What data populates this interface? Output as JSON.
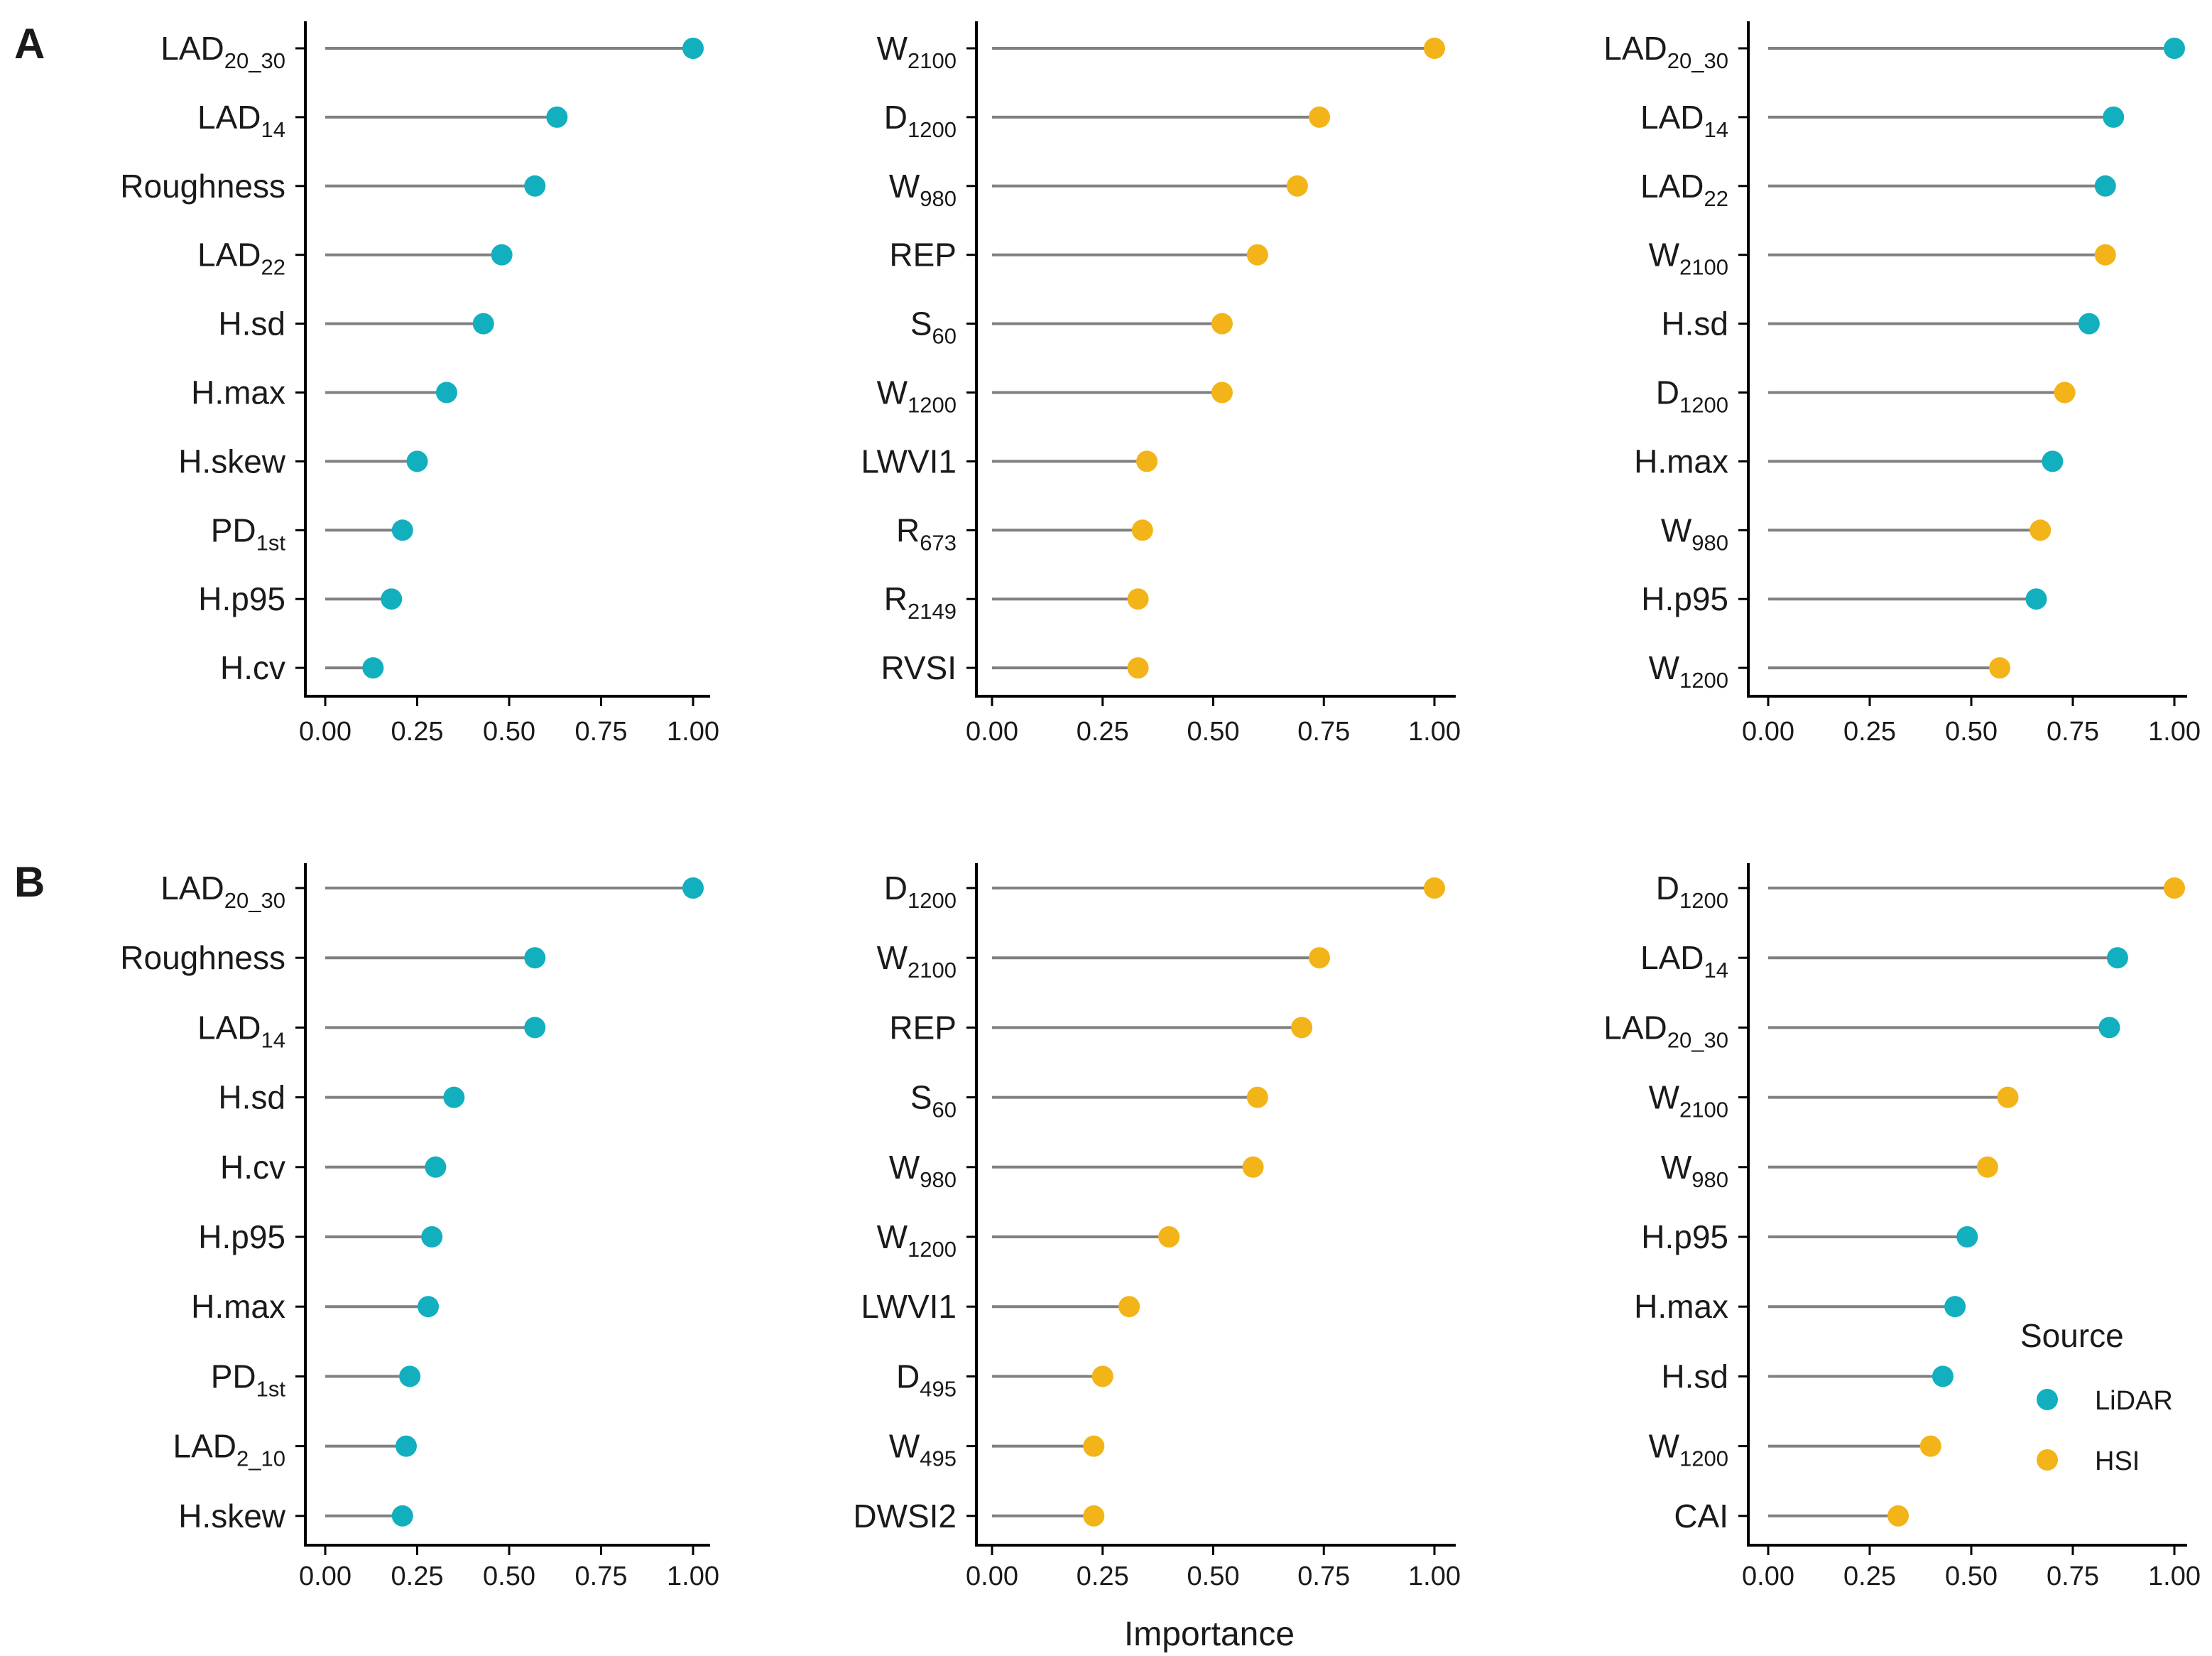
{
  "figure": {
    "panel_tags": [
      "A",
      "B"
    ],
    "xlabel": "Importance",
    "legend": {
      "title": "Source",
      "placement": "right",
      "items": [
        {
          "label": "LiDAR",
          "color": "#12AFBE"
        },
        {
          "label": "HSI",
          "color": "#F2B418"
        }
      ]
    },
    "colors": {
      "LiDAR": "#12AFBE",
      "HSI": "#F2B418",
      "stem": "#808080",
      "axis": "#000000"
    }
  },
  "chart_data": [
    {
      "type": "lollipop",
      "row": "A",
      "col": 1,
      "xlim": [
        0,
        1
      ],
      "xticks": [
        "0.00",
        "0.25",
        "0.50",
        "0.75",
        "1.00"
      ],
      "categories": [
        {
          "base": "LAD",
          "sub": "20_30",
          "value": 1.0,
          "source": "LiDAR"
        },
        {
          "base": "LAD",
          "sub": "14",
          "value": 0.63,
          "source": "LiDAR"
        },
        {
          "base": "Roughness",
          "sub": "",
          "value": 0.57,
          "source": "LiDAR"
        },
        {
          "base": "LAD",
          "sub": "22",
          "value": 0.48,
          "source": "LiDAR"
        },
        {
          "base": "H.sd",
          "sub": "",
          "value": 0.43,
          "source": "LiDAR"
        },
        {
          "base": "H.max",
          "sub": "",
          "value": 0.33,
          "source": "LiDAR"
        },
        {
          "base": "H.skew",
          "sub": "",
          "value": 0.25,
          "source": "LiDAR"
        },
        {
          "base": "PD",
          "sub": "1st",
          "value": 0.21,
          "source": "LiDAR"
        },
        {
          "base": "H.p95",
          "sub": "",
          "value": 0.18,
          "source": "LiDAR"
        },
        {
          "base": "H.cv",
          "sub": "",
          "value": 0.13,
          "source": "LiDAR"
        }
      ]
    },
    {
      "type": "lollipop",
      "row": "A",
      "col": 2,
      "xlim": [
        0,
        1
      ],
      "xticks": [
        "0.00",
        "0.25",
        "0.50",
        "0.75",
        "1.00"
      ],
      "categories": [
        {
          "base": "W",
          "sub": "2100",
          "value": 1.0,
          "source": "HSI"
        },
        {
          "base": "D",
          "sub": "1200",
          "value": 0.74,
          "source": "HSI"
        },
        {
          "base": "W",
          "sub": "980",
          "value": 0.69,
          "source": "HSI"
        },
        {
          "base": "REP",
          "sub": "",
          "value": 0.6,
          "source": "HSI"
        },
        {
          "base": "S",
          "sub": "60",
          "value": 0.52,
          "source": "HSI"
        },
        {
          "base": "W",
          "sub": "1200",
          "value": 0.52,
          "source": "HSI"
        },
        {
          "base": "LWVI1",
          "sub": "",
          "value": 0.35,
          "source": "HSI"
        },
        {
          "base": "R",
          "sub": "673",
          "value": 0.34,
          "source": "HSI"
        },
        {
          "base": "R",
          "sub": "2149",
          "value": 0.33,
          "source": "HSI"
        },
        {
          "base": "RVSI",
          "sub": "",
          "value": 0.33,
          "source": "HSI"
        }
      ]
    },
    {
      "type": "lollipop",
      "row": "A",
      "col": 3,
      "xlim": [
        0,
        1
      ],
      "xticks": [
        "0.00",
        "0.25",
        "0.50",
        "0.75",
        "1.00"
      ],
      "categories": [
        {
          "base": "LAD",
          "sub": "20_30",
          "value": 1.0,
          "source": "LiDAR"
        },
        {
          "base": "LAD",
          "sub": "14",
          "value": 0.85,
          "source": "LiDAR"
        },
        {
          "base": "LAD",
          "sub": "22",
          "value": 0.83,
          "source": "LiDAR"
        },
        {
          "base": "W",
          "sub": "2100",
          "value": 0.83,
          "source": "HSI"
        },
        {
          "base": "H.sd",
          "sub": "",
          "value": 0.79,
          "source": "LiDAR"
        },
        {
          "base": "D",
          "sub": "1200",
          "value": 0.73,
          "source": "HSI"
        },
        {
          "base": "H.max",
          "sub": "",
          "value": 0.7,
          "source": "LiDAR"
        },
        {
          "base": "W",
          "sub": "980",
          "value": 0.67,
          "source": "HSI"
        },
        {
          "base": "H.p95",
          "sub": "",
          "value": 0.66,
          "source": "LiDAR"
        },
        {
          "base": "W",
          "sub": "1200",
          "value": 0.57,
          "source": "HSI"
        }
      ]
    },
    {
      "type": "lollipop",
      "row": "B",
      "col": 1,
      "xlim": [
        0,
        1
      ],
      "xticks": [
        "0.00",
        "0.25",
        "0.50",
        "0.75",
        "1.00"
      ],
      "categories": [
        {
          "base": "LAD",
          "sub": "20_30",
          "value": 1.0,
          "source": "LiDAR"
        },
        {
          "base": "Roughness",
          "sub": "",
          "value": 0.57,
          "source": "LiDAR"
        },
        {
          "base": "LAD",
          "sub": "14",
          "value": 0.57,
          "source": "LiDAR"
        },
        {
          "base": "H.sd",
          "sub": "",
          "value": 0.35,
          "source": "LiDAR"
        },
        {
          "base": "H.cv",
          "sub": "",
          "value": 0.3,
          "source": "LiDAR"
        },
        {
          "base": "H.p95",
          "sub": "",
          "value": 0.29,
          "source": "LiDAR"
        },
        {
          "base": "H.max",
          "sub": "",
          "value": 0.28,
          "source": "LiDAR"
        },
        {
          "base": "PD",
          "sub": "1st",
          "value": 0.23,
          "source": "LiDAR"
        },
        {
          "base": "LAD",
          "sub": "2_10",
          "value": 0.22,
          "source": "LiDAR"
        },
        {
          "base": "H.skew",
          "sub": "",
          "value": 0.21,
          "source": "LiDAR"
        }
      ]
    },
    {
      "type": "lollipop",
      "row": "B",
      "col": 2,
      "xlim": [
        0,
        1
      ],
      "xticks": [
        "0.00",
        "0.25",
        "0.50",
        "0.75",
        "1.00"
      ],
      "categories": [
        {
          "base": "D",
          "sub": "1200",
          "value": 1.0,
          "source": "HSI"
        },
        {
          "base": "W",
          "sub": "2100",
          "value": 0.74,
          "source": "HSI"
        },
        {
          "base": "REP",
          "sub": "",
          "value": 0.7,
          "source": "HSI"
        },
        {
          "base": "S",
          "sub": "60",
          "value": 0.6,
          "source": "HSI"
        },
        {
          "base": "W",
          "sub": "980",
          "value": 0.59,
          "source": "HSI"
        },
        {
          "base": "W",
          "sub": "1200",
          "value": 0.4,
          "source": "HSI"
        },
        {
          "base": "LWVI1",
          "sub": "",
          "value": 0.31,
          "source": "HSI"
        },
        {
          "base": "D",
          "sub": "495",
          "value": 0.25,
          "source": "HSI"
        },
        {
          "base": "W",
          "sub": "495",
          "value": 0.23,
          "source": "HSI"
        },
        {
          "base": "DWSI2",
          "sub": "",
          "value": 0.23,
          "source": "HSI"
        }
      ]
    },
    {
      "type": "lollipop",
      "row": "B",
      "col": 3,
      "xlim": [
        0,
        1
      ],
      "xticks": [
        "0.00",
        "0.25",
        "0.50",
        "0.75",
        "1.00"
      ],
      "categories": [
        {
          "base": "D",
          "sub": "1200",
          "value": 1.0,
          "source": "HSI"
        },
        {
          "base": "LAD",
          "sub": "14",
          "value": 0.86,
          "source": "LiDAR"
        },
        {
          "base": "LAD",
          "sub": "20_30",
          "value": 0.84,
          "source": "LiDAR"
        },
        {
          "base": "W",
          "sub": "2100",
          "value": 0.59,
          "source": "HSI"
        },
        {
          "base": "W",
          "sub": "980",
          "value": 0.54,
          "source": "HSI"
        },
        {
          "base": "H.p95",
          "sub": "",
          "value": 0.49,
          "source": "LiDAR"
        },
        {
          "base": "H.max",
          "sub": "",
          "value": 0.46,
          "source": "LiDAR"
        },
        {
          "base": "H.sd",
          "sub": "",
          "value": 0.43,
          "source": "LiDAR"
        },
        {
          "base": "W",
          "sub": "1200",
          "value": 0.4,
          "source": "HSI"
        },
        {
          "base": "CAI",
          "sub": "",
          "value": 0.32,
          "source": "HSI"
        }
      ]
    }
  ]
}
